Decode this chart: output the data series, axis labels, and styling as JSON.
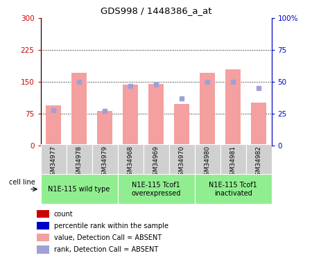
{
  "title": "GDS998 / 1448386_a_at",
  "samples": [
    "GSM34977",
    "GSM34978",
    "GSM34979",
    "GSM34968",
    "GSM34969",
    "GSM34970",
    "GSM34980",
    "GSM34981",
    "GSM34982"
  ],
  "bar_values": [
    95,
    172,
    82,
    143,
    145,
    98,
    172,
    180,
    102
  ],
  "rank_values": [
    28,
    50,
    27,
    47,
    48,
    37,
    50,
    50,
    45
  ],
  "bar_color": "#f4a0a0",
  "rank_color": "#a0a0d8",
  "left_yticks": [
    0,
    75,
    150,
    225,
    300
  ],
  "right_yticks": [
    0,
    25,
    50,
    75,
    100
  ],
  "left_ylim": [
    0,
    300
  ],
  "right_ylim": [
    0,
    100
  ],
  "left_ylabel_color": "#cc0000",
  "right_ylabel_color": "#0000cc",
  "groups": [
    {
      "label": "N1E-115 wild type",
      "start": 0,
      "end": 2
    },
    {
      "label": "N1E-115 Tcof1\noverexpressed",
      "start": 3,
      "end": 5
    },
    {
      "label": "N1E-115 Tcof1\ninactivated",
      "start": 6,
      "end": 8
    }
  ],
  "group_bg_color": "#90ee90",
  "sample_bg_color": "#d0d0d0",
  "legend_items": [
    {
      "label": "count",
      "color": "#cc0000"
    },
    {
      "label": "percentile rank within the sample",
      "color": "#0000cc"
    },
    {
      "label": "value, Detection Call = ABSENT",
      "color": "#f4a0a0"
    },
    {
      "label": "rank, Detection Call = ABSENT",
      "color": "#a0a0d8"
    }
  ],
  "cell_line_label": "cell line"
}
